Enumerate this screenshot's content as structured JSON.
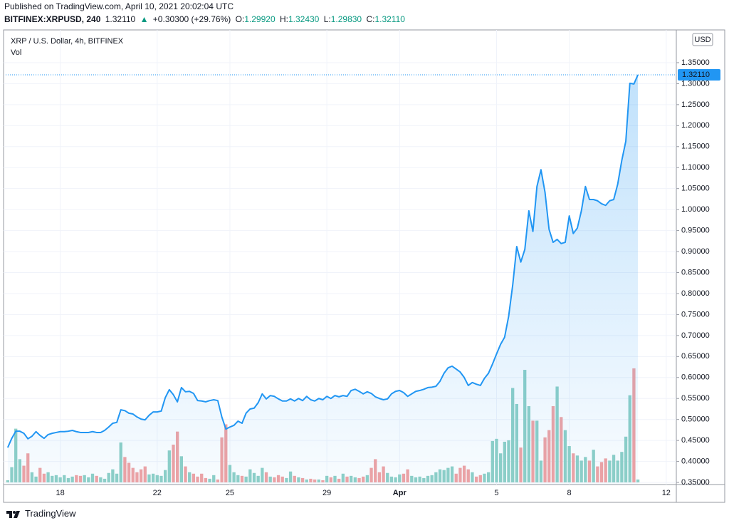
{
  "header": {
    "published": "Published on TradingView.com, April 10, 2021 20:02:04 UTC",
    "symbol": "BITFINEX:XRPUSD, 240",
    "last": "1.32110",
    "arrow": "▲",
    "change": "+0.30300 (+29.76%)",
    "ohlc": [
      {
        "key": "O:",
        "value": "1.29920"
      },
      {
        "key": "H:",
        "value": "1.32430"
      },
      {
        "key": "L:",
        "value": "1.29830"
      },
      {
        "key": "C:",
        "value": "1.32110"
      }
    ]
  },
  "footer": {
    "brand": "TradingView"
  },
  "chart_data": {
    "type": "line",
    "title": "XRP / U.S. Dollar, 4h, BITFINEX",
    "currency": "USD",
    "categories": [
      null,
      null,
      null,
      null,
      null,
      null,
      null,
      null,
      null,
      null,
      null,
      null,
      null,
      "18",
      null,
      null,
      null,
      null,
      null,
      null,
      null,
      null,
      null,
      null,
      null,
      null,
      null,
      null,
      null,
      null,
      null,
      null,
      null,
      null,
      null,
      null,
      null,
      "22",
      null,
      null,
      null,
      null,
      null,
      null,
      null,
      null,
      null,
      null,
      null,
      null,
      null,
      null,
      null,
      null,
      null,
      "25",
      null,
      null,
      null,
      null,
      null,
      null,
      null,
      null,
      null,
      null,
      null,
      null,
      null,
      null,
      null,
      null,
      null,
      null,
      null,
      null,
      null,
      null,
      null,
      "29",
      null,
      null,
      null,
      null,
      null,
      null,
      null,
      null,
      null,
      null,
      null,
      null,
      null,
      null,
      null,
      null,
      null,
      "Apr",
      null,
      null,
      null,
      null,
      null,
      null,
      null,
      null,
      null,
      null,
      null,
      null,
      null,
      null,
      null,
      null,
      null,
      null,
      null,
      null,
      null,
      null,
      null,
      "5",
      null,
      null,
      null,
      null,
      null,
      null,
      null,
      null,
      null,
      null,
      null,
      null,
      null,
      null,
      null,
      null,
      null,
      "8",
      null,
      null,
      null,
      null,
      null,
      null,
      null,
      null,
      null,
      null,
      null,
      null,
      null,
      null,
      null,
      null,
      null,
      null,
      null,
      null,
      null,
      null,
      null,
      "12",
      null,
      null
    ],
    "series": [
      {
        "name": "XRP / U.S. Dollar, 4h, BITFINEX",
        "color": "#2196f3",
        "values": [
          0.433,
          0.455,
          0.472,
          0.472,
          0.467,
          0.454,
          0.46,
          0.471,
          0.462,
          0.455,
          0.464,
          0.467,
          0.469,
          0.471,
          0.471,
          0.472,
          0.474,
          0.471,
          0.469,
          0.469,
          0.469,
          0.471,
          0.469,
          0.469,
          0.474,
          0.482,
          0.491,
          0.493,
          0.523,
          0.521,
          0.515,
          0.513,
          0.506,
          0.501,
          0.499,
          0.51,
          0.518,
          0.518,
          0.52,
          0.552,
          0.571,
          0.559,
          0.542,
          0.576,
          0.566,
          0.567,
          0.562,
          0.545,
          0.544,
          0.542,
          0.545,
          0.547,
          0.545,
          0.506,
          0.477,
          0.482,
          0.486,
          0.496,
          0.491,
          0.515,
          0.525,
          0.527,
          0.54,
          0.561,
          0.549,
          0.557,
          0.555,
          0.549,
          0.544,
          0.544,
          0.549,
          0.544,
          0.55,
          0.545,
          0.555,
          0.547,
          0.544,
          0.55,
          0.547,
          0.555,
          0.55,
          0.557,
          0.554,
          0.557,
          0.555,
          0.569,
          0.572,
          0.567,
          0.561,
          0.566,
          0.562,
          0.554,
          0.55,
          0.547,
          0.549,
          0.561,
          0.567,
          0.569,
          0.564,
          0.555,
          0.561,
          0.567,
          0.569,
          0.572,
          0.576,
          0.577,
          0.579,
          0.591,
          0.61,
          0.623,
          0.627,
          0.62,
          0.613,
          0.6,
          0.581,
          0.588,
          0.584,
          0.581,
          0.598,
          0.61,
          0.632,
          0.656,
          0.679,
          0.696,
          0.746,
          0.82,
          0.912,
          0.875,
          0.905,
          0.997,
          0.948,
          1.055,
          1.095,
          1.041,
          0.953,
          0.922,
          0.929,
          0.919,
          0.922,
          0.985,
          0.943,
          0.956,
          0.997,
          1.055,
          1.024,
          1.024,
          1.021,
          1.014,
          1.01,
          1.021,
          1.024,
          1.061,
          1.117,
          1.163,
          1.301,
          1.2992,
          1.3211,
          null,
          null,
          null,
          null,
          null,
          null,
          null,
          null,
          null
        ]
      },
      {
        "name": "Vol",
        "type": "bar",
        "up_color": "#8fd0c6",
        "down_color": "#f1a3a3",
        "values": [
          3,
          21,
          74,
          32,
          23,
          40,
          14,
          8,
          20,
          12,
          14,
          9,
          10,
          7,
          10,
          6,
          8,
          10,
          9,
          10,
          7,
          12,
          9,
          7,
          5,
          13,
          18,
          12,
          55,
          35,
          27,
          20,
          14,
          18,
          22,
          11,
          12,
          10,
          9,
          17,
          44,
          52,
          70,
          36,
          22,
          14,
          12,
          8,
          12,
          6,
          5,
          10,
          4,
          62,
          80,
          24,
          14,
          10,
          9,
          8,
          18,
          13,
          9,
          20,
          14,
          8,
          7,
          10,
          8,
          6,
          15,
          9,
          7,
          6,
          4,
          5,
          4,
          4,
          3,
          9,
          7,
          9,
          5,
          12,
          8,
          9,
          7,
          6,
          8,
          10,
          20,
          32,
          14,
          22,
          13,
          8,
          7,
          11,
          12,
          18,
          9,
          7,
          8,
          6,
          9,
          10,
          14,
          18,
          17,
          20,
          22,
          12,
          20,
          23,
          18,
          14,
          8,
          10,
          12,
          14,
          57,
          60,
          40,
          56,
          58,
          130,
          108,
          48,
          155,
          105,
          85,
          85,
          30,
          62,
          72,
          105,
          132,
          90,
          72,
          50,
          40,
          37,
          30,
          35,
          30,
          45,
          22,
          28,
          33,
          30,
          38,
          30,
          42,
          63,
          120,
          157,
          4,
          null,
          null,
          null,
          null,
          null,
          null,
          null,
          null,
          null
        ]
      }
    ],
    "ylim": [
      0.345,
      1.428
    ],
    "yticks": [
      {
        "value": 0.35,
        "label": "0.35000"
      },
      {
        "value": 0.4,
        "label": "0.40000"
      },
      {
        "value": 0.45,
        "label": "0.45000"
      },
      {
        "value": 0.5,
        "label": "0.50000"
      },
      {
        "value": 0.55,
        "label": "0.55000"
      },
      {
        "value": 0.6,
        "label": "0.60000"
      },
      {
        "value": 0.65,
        "label": "0.65000"
      },
      {
        "value": 0.7,
        "label": "0.70000"
      },
      {
        "value": 0.75,
        "label": "0.75000"
      },
      {
        "value": 0.8,
        "label": "0.80000"
      },
      {
        "value": 0.85,
        "label": "0.85000"
      },
      {
        "value": 0.9,
        "label": "0.90000"
      },
      {
        "value": 0.95,
        "label": "0.95000"
      },
      {
        "value": 1.0,
        "label": "1.00000"
      },
      {
        "value": 1.05,
        "label": "1.05000"
      },
      {
        "value": 1.1,
        "label": "1.10000"
      },
      {
        "value": 1.15,
        "label": "1.15000"
      },
      {
        "value": 1.2,
        "label": "1.20000"
      },
      {
        "value": 1.25,
        "label": "1.25000"
      },
      {
        "value": 1.3,
        "label": "1.30000"
      },
      {
        "value": 1.35,
        "label": "1.35000"
      }
    ],
    "grid": true,
    "last_price_line": true
  }
}
